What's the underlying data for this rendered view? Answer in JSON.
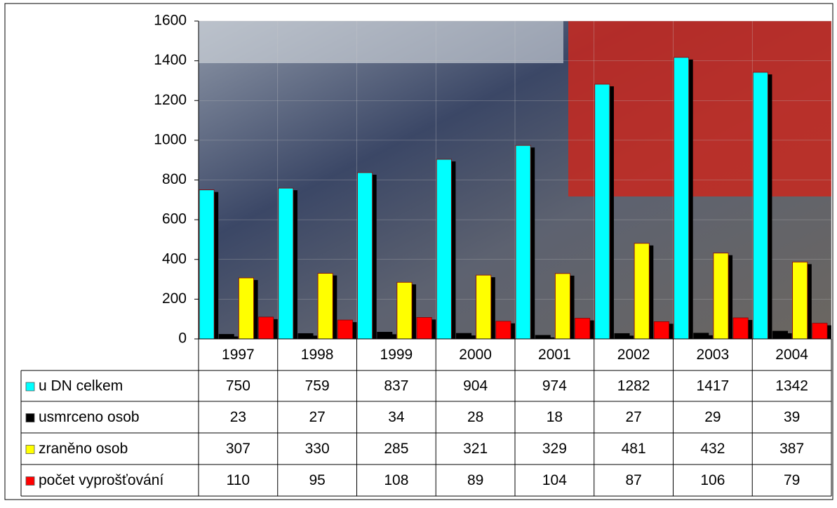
{
  "chart_data": {
    "type": "bar",
    "categories": [
      "1997",
      "1998",
      "1999",
      "2000",
      "2001",
      "2002",
      "2003",
      "2004"
    ],
    "series": [
      {
        "name": "u DN  celkem",
        "color": "#00ffff",
        "values": [
          750,
          759,
          837,
          904,
          974,
          1282,
          1417,
          1342
        ]
      },
      {
        "name": "usmrceno osob",
        "color": "#000000",
        "values": [
          23,
          27,
          34,
          28,
          18,
          27,
          29,
          39
        ]
      },
      {
        "name": "zraněno osob",
        "color": "#ffff00",
        "values": [
          307,
          330,
          285,
          321,
          329,
          481,
          432,
          387
        ]
      },
      {
        "name": "počet vyprošťování",
        "color": "#ff0000",
        "values": [
          110,
          95,
          108,
          89,
          104,
          87,
          106,
          79
        ]
      }
    ],
    "ylim": [
      0,
      1600
    ],
    "yticks": [
      0,
      200,
      400,
      600,
      800,
      1000,
      1200,
      1400,
      1600
    ],
    "grid": true
  }
}
